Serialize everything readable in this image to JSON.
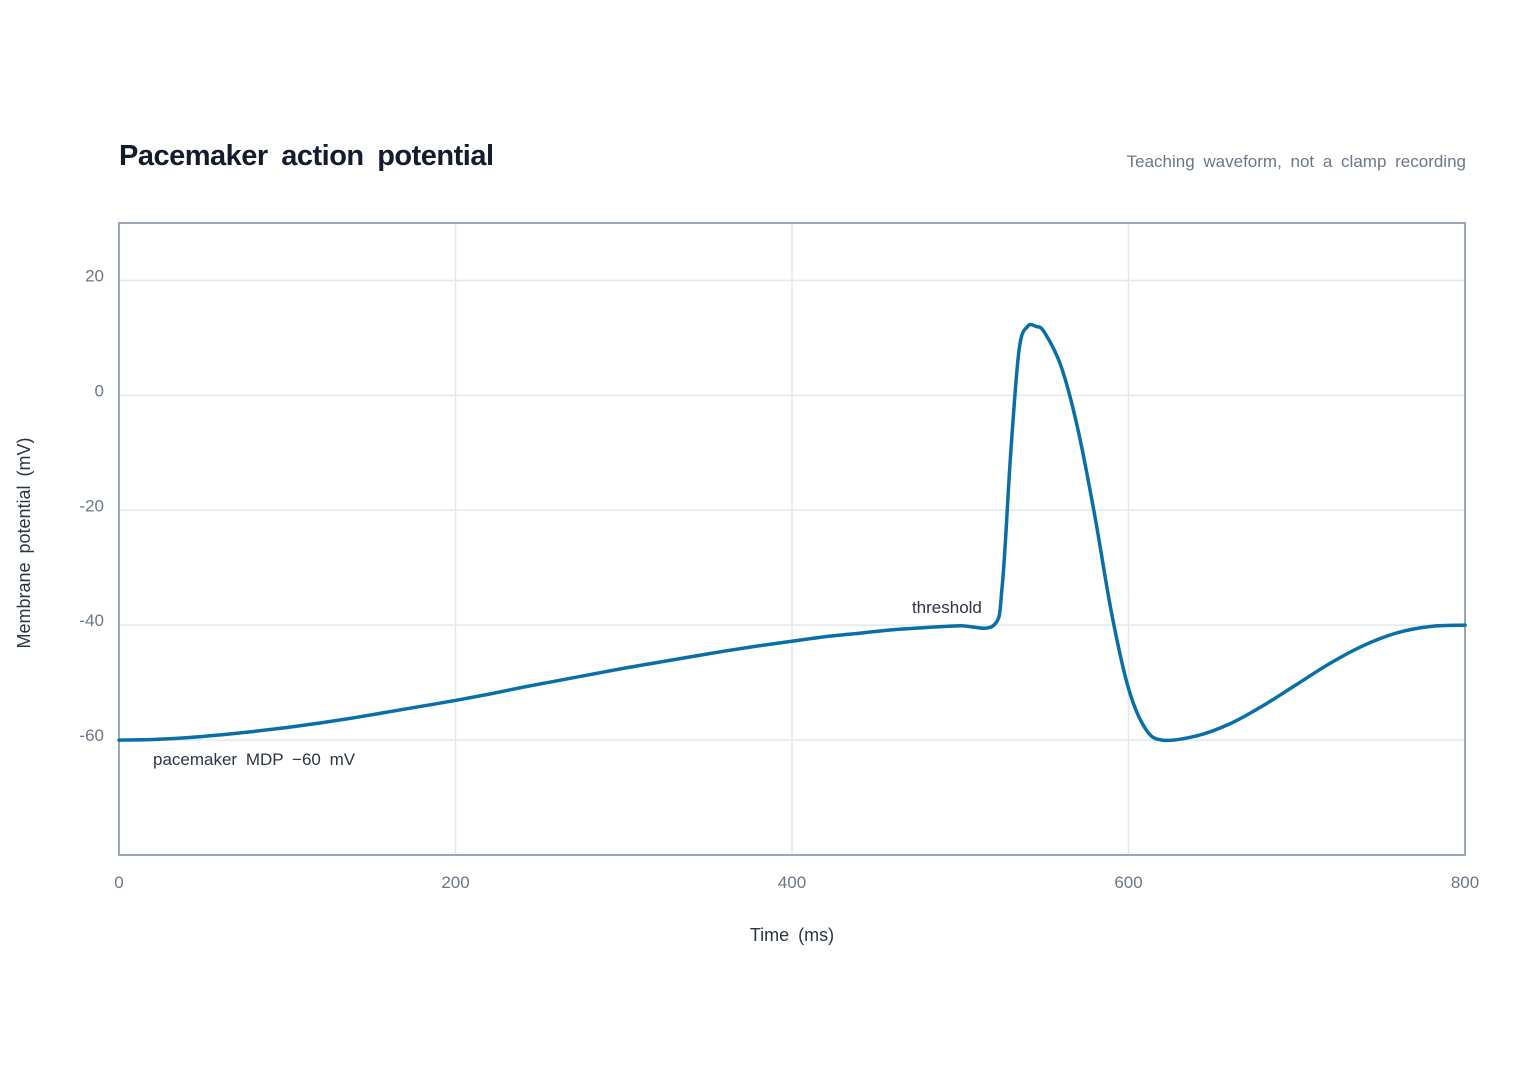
{
  "chart_data": {
    "type": "line",
    "title": "Pacemaker action potential",
    "subtitle": "Teaching waveform, not a clamp recording",
    "xlabel": "Time (ms)",
    "ylabel": "Membrane potential (mV)",
    "xlim": [
      0,
      800
    ],
    "ylim": [
      -80,
      30
    ],
    "xticks": [
      0,
      200,
      400,
      600,
      800
    ],
    "yticks": [
      -60,
      -40,
      -20,
      0,
      20
    ],
    "grid": true,
    "colors": {
      "line": "#0a6fa6",
      "grid": "#e3e8ee",
      "frame": "#9aa7b6"
    },
    "series": [
      {
        "x": [
          0,
          20,
          40,
          60,
          80,
          100,
          120,
          140,
          160,
          180,
          200,
          220,
          240,
          260,
          280,
          300,
          320,
          340,
          360,
          380,
          400,
          420,
          440,
          460,
          480,
          500,
          520,
          525,
          530,
          535,
          540,
          545,
          550,
          560,
          570,
          580,
          590,
          600,
          610,
          620,
          640,
          660,
          680,
          700,
          720,
          740,
          760,
          780,
          800
        ],
        "y": [
          -60,
          -59.9,
          -59.6,
          -59.1,
          -58.5,
          -57.8,
          -57.0,
          -56.1,
          -55.1,
          -54.1,
          -53.1,
          -52.0,
          -50.8,
          -49.7,
          -48.6,
          -47.5,
          -46.5,
          -45.5,
          -44.5,
          -43.6,
          -42.8,
          -42.0,
          -41.4,
          -40.8,
          -40.4,
          -40.1,
          -40,
          -33,
          -10,
          8,
          12,
          12,
          11,
          5,
          -6,
          -21,
          -38,
          -51,
          -58,
          -60,
          -59.3,
          -57.2,
          -54.0,
          -50.3,
          -46.6,
          -43.5,
          -41.3,
          -40.2,
          -40
        ]
      }
    ],
    "annotations": [
      {
        "text": "threshold",
        "x": 520,
        "y": -40
      },
      {
        "text": "pacemaker MDP −60 mV",
        "x": 0,
        "y": -60
      }
    ]
  }
}
